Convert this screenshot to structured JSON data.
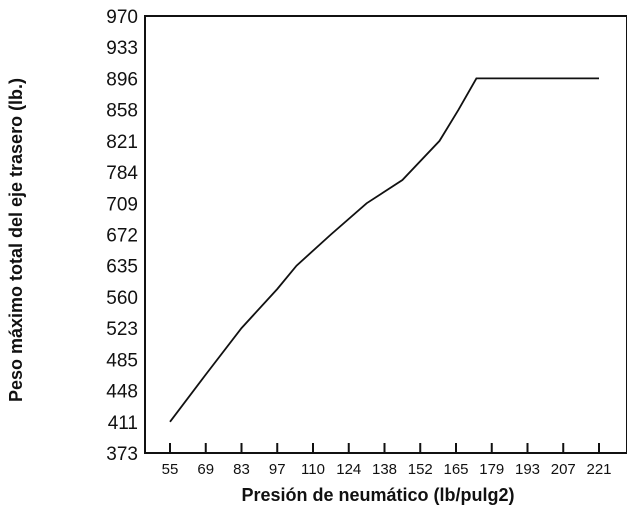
{
  "chart_data": {
    "type": "line",
    "xlabel": "Presión de neumático (lb/pulg2)",
    "ylabel": "Peso máximo total del eje trasero (lb.)",
    "x_categories": [
      "55",
      "69",
      "83",
      "97",
      "110",
      "124",
      "138",
      "152",
      "165",
      "179",
      "193",
      "207",
      "221"
    ],
    "y_ticks": [
      "373",
      "411",
      "448",
      "485",
      "523",
      "560",
      "635",
      "672",
      "709",
      "784",
      "821",
      "858",
      "896",
      "933",
      "970"
    ],
    "grid": false,
    "series": [
      {
        "points": [
          {
            "x": 55,
            "y": 411
          },
          {
            "x": 69,
            "y": 467
          },
          {
            "x": 83,
            "y": 523
          },
          {
            "x": 97,
            "y": 579
          },
          {
            "x": 104,
            "y": 635
          },
          {
            "x": 117,
            "y": 672
          },
          {
            "x": 131,
            "y": 709
          },
          {
            "x": 145,
            "y": 765
          },
          {
            "x": 159,
            "y": 821
          },
          {
            "x": 166,
            "y": 858
          },
          {
            "x": 173,
            "y": 896
          },
          {
            "x": 221,
            "y": 896
          }
        ]
      }
    ]
  }
}
